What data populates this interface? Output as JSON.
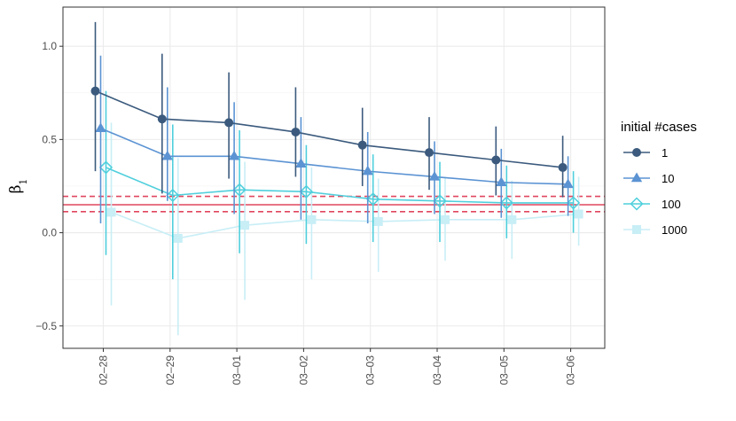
{
  "chart_data": {
    "type": "line",
    "title": "",
    "xlabel": "",
    "ylabel": "β",
    "ylabel_subscript": "1",
    "categories": [
      "02–28",
      "02–29",
      "03–01",
      "03–02",
      "03–03",
      "03–04",
      "03–05",
      "03–06"
    ],
    "ylim": [
      -0.62,
      1.21
    ],
    "yticks": [
      -0.5,
      0.0,
      0.5,
      1.0
    ],
    "ytick_labels": [
      "−0.5",
      "0.0",
      "0.5",
      "1.0"
    ],
    "grid": true,
    "legend": {
      "title": "initial #cases",
      "position": "right"
    },
    "reference_lines": [
      {
        "value": 0.15,
        "style": "solid",
        "color": "#e0475f"
      },
      {
        "value": 0.195,
        "style": "dashed",
        "color": "#e0475f"
      },
      {
        "value": 0.113,
        "style": "dashed",
        "color": "#e0475f"
      }
    ],
    "series": [
      {
        "name": "1",
        "color": "#3b5a7d",
        "marker": "circle",
        "values": [
          0.76,
          0.61,
          0.59,
          0.54,
          0.47,
          0.43,
          0.39,
          0.35
        ],
        "lower": [
          0.33,
          0.21,
          0.29,
          0.3,
          0.25,
          0.23,
          0.2,
          0.19
        ],
        "upper": [
          1.13,
          0.96,
          0.86,
          0.78,
          0.67,
          0.62,
          0.57,
          0.52
        ]
      },
      {
        "name": "10",
        "color": "#5b93d3",
        "marker": "triangle",
        "values": [
          0.56,
          0.41,
          0.41,
          0.37,
          0.33,
          0.3,
          0.27,
          0.26
        ],
        "lower": [
          0.05,
          0.17,
          0.1,
          0.07,
          0.05,
          0.1,
          0.08,
          0.09
        ],
        "upper": [
          0.95,
          0.78,
          0.7,
          0.62,
          0.54,
          0.49,
          0.45,
          0.41
        ]
      },
      {
        "name": "100",
        "color": "#4fcfdc",
        "marker": "diamond-open",
        "values": [
          0.35,
          0.2,
          0.23,
          0.22,
          0.18,
          0.17,
          0.16,
          0.16
        ],
        "lower": [
          -0.12,
          -0.25,
          -0.11,
          -0.06,
          -0.05,
          -0.05,
          -0.03,
          0.0
        ],
        "upper": [
          0.76,
          0.58,
          0.55,
          0.47,
          0.42,
          0.38,
          0.36,
          0.33
        ]
      },
      {
        "name": "1000",
        "color": "#c8eef6",
        "marker": "square",
        "values": [
          0.11,
          -0.03,
          0.04,
          0.07,
          0.06,
          0.07,
          0.07,
          0.1
        ],
        "lower": [
          -0.39,
          -0.55,
          -0.36,
          -0.25,
          -0.21,
          -0.15,
          -0.14,
          -0.07
        ],
        "upper": [
          0.59,
          0.4,
          0.38,
          0.35,
          0.29,
          0.3,
          0.28,
          0.3
        ]
      }
    ]
  }
}
